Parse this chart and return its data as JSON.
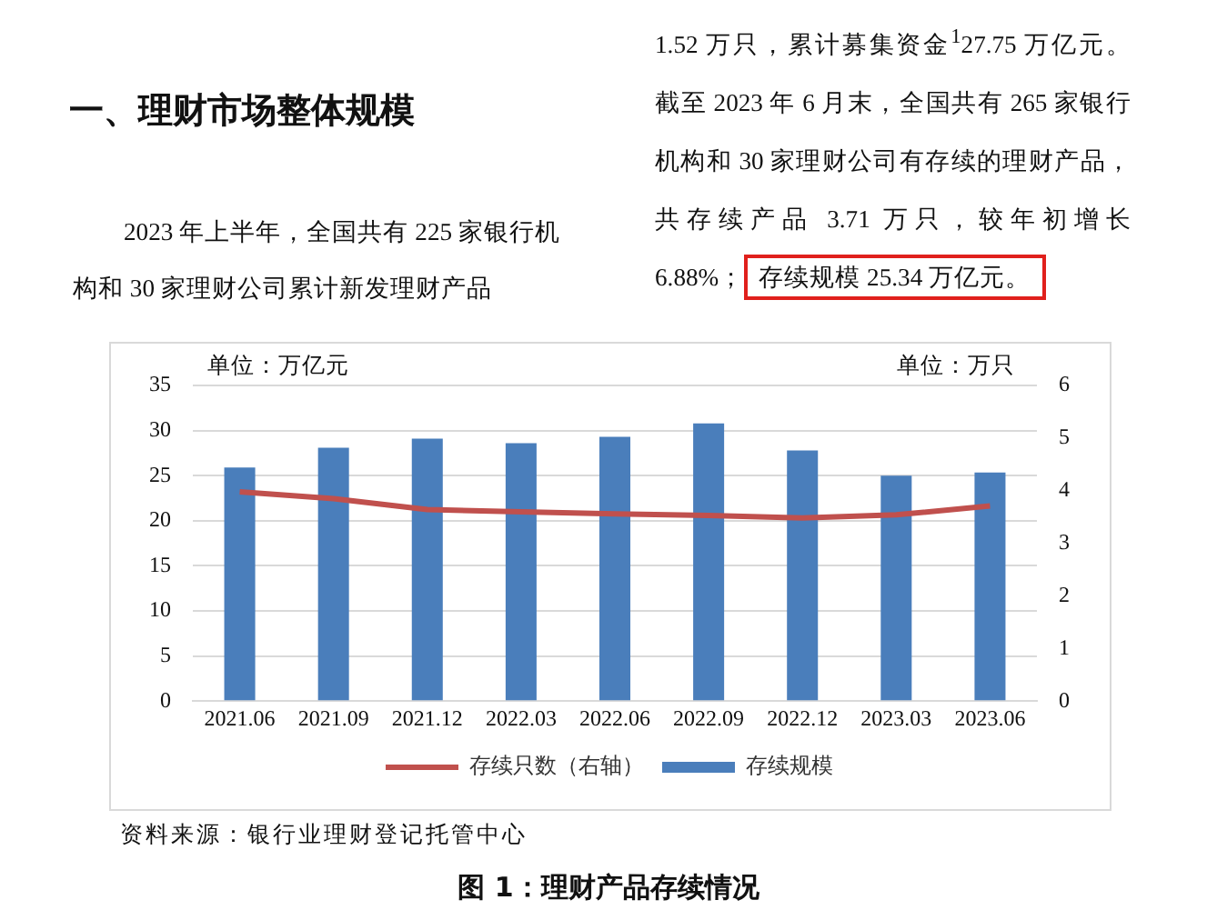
{
  "chart_data": {
    "type": "bar",
    "title": "图 1：理财产品存续情况",
    "categories": [
      "2021.06",
      "2021.09",
      "2021.12",
      "2022.03",
      "2022.06",
      "2022.09",
      "2022.12",
      "2023.03",
      "2023.06"
    ],
    "series": [
      {
        "name": "存续规模",
        "color": "#4a7ebb",
        "values": [
          25.9,
          28.1,
          29.1,
          28.6,
          29.3,
          30.8,
          27.8,
          25.0,
          25.34
        ]
      },
      {
        "name": "存续只数（右轴）",
        "type": "line",
        "axis": "y2",
        "color": "#c0504d",
        "values": [
          3.98,
          3.85,
          3.64,
          3.6,
          3.56,
          3.53,
          3.48,
          3.54,
          3.71
        ]
      }
    ],
    "ylim": [
      0,
      35
    ],
    "yticks": [
      0,
      5,
      10,
      15,
      20,
      25,
      30,
      35
    ],
    "y2lim": [
      0,
      6
    ],
    "y2ticks": [
      0,
      1,
      2,
      3,
      4,
      5,
      6
    ],
    "grid": "y",
    "legend": "bottom",
    "marker": "none",
    "line_style": "solid",
    "annotations": [
      "一、理财市场整体规模",
      "2023 年上半年，全国共有 225 家银行机构和 30 家理财公司累计新发理财产品",
      "1.52 万只，累计募集资金$^{1}$27.75 万亿元。截至 2023 年 6 月末，全国共有 265 家银行机构和 30 家理财公司有存续的理财产品，共存续产品 3.71 万只，较年初增长 6.88%；",
      "存续规模 25.34 万亿元。",
      "单位：万亿元",
      "单位：万只",
      "资料来源：银行业理财登记托管中心"
    ]
  }
}
